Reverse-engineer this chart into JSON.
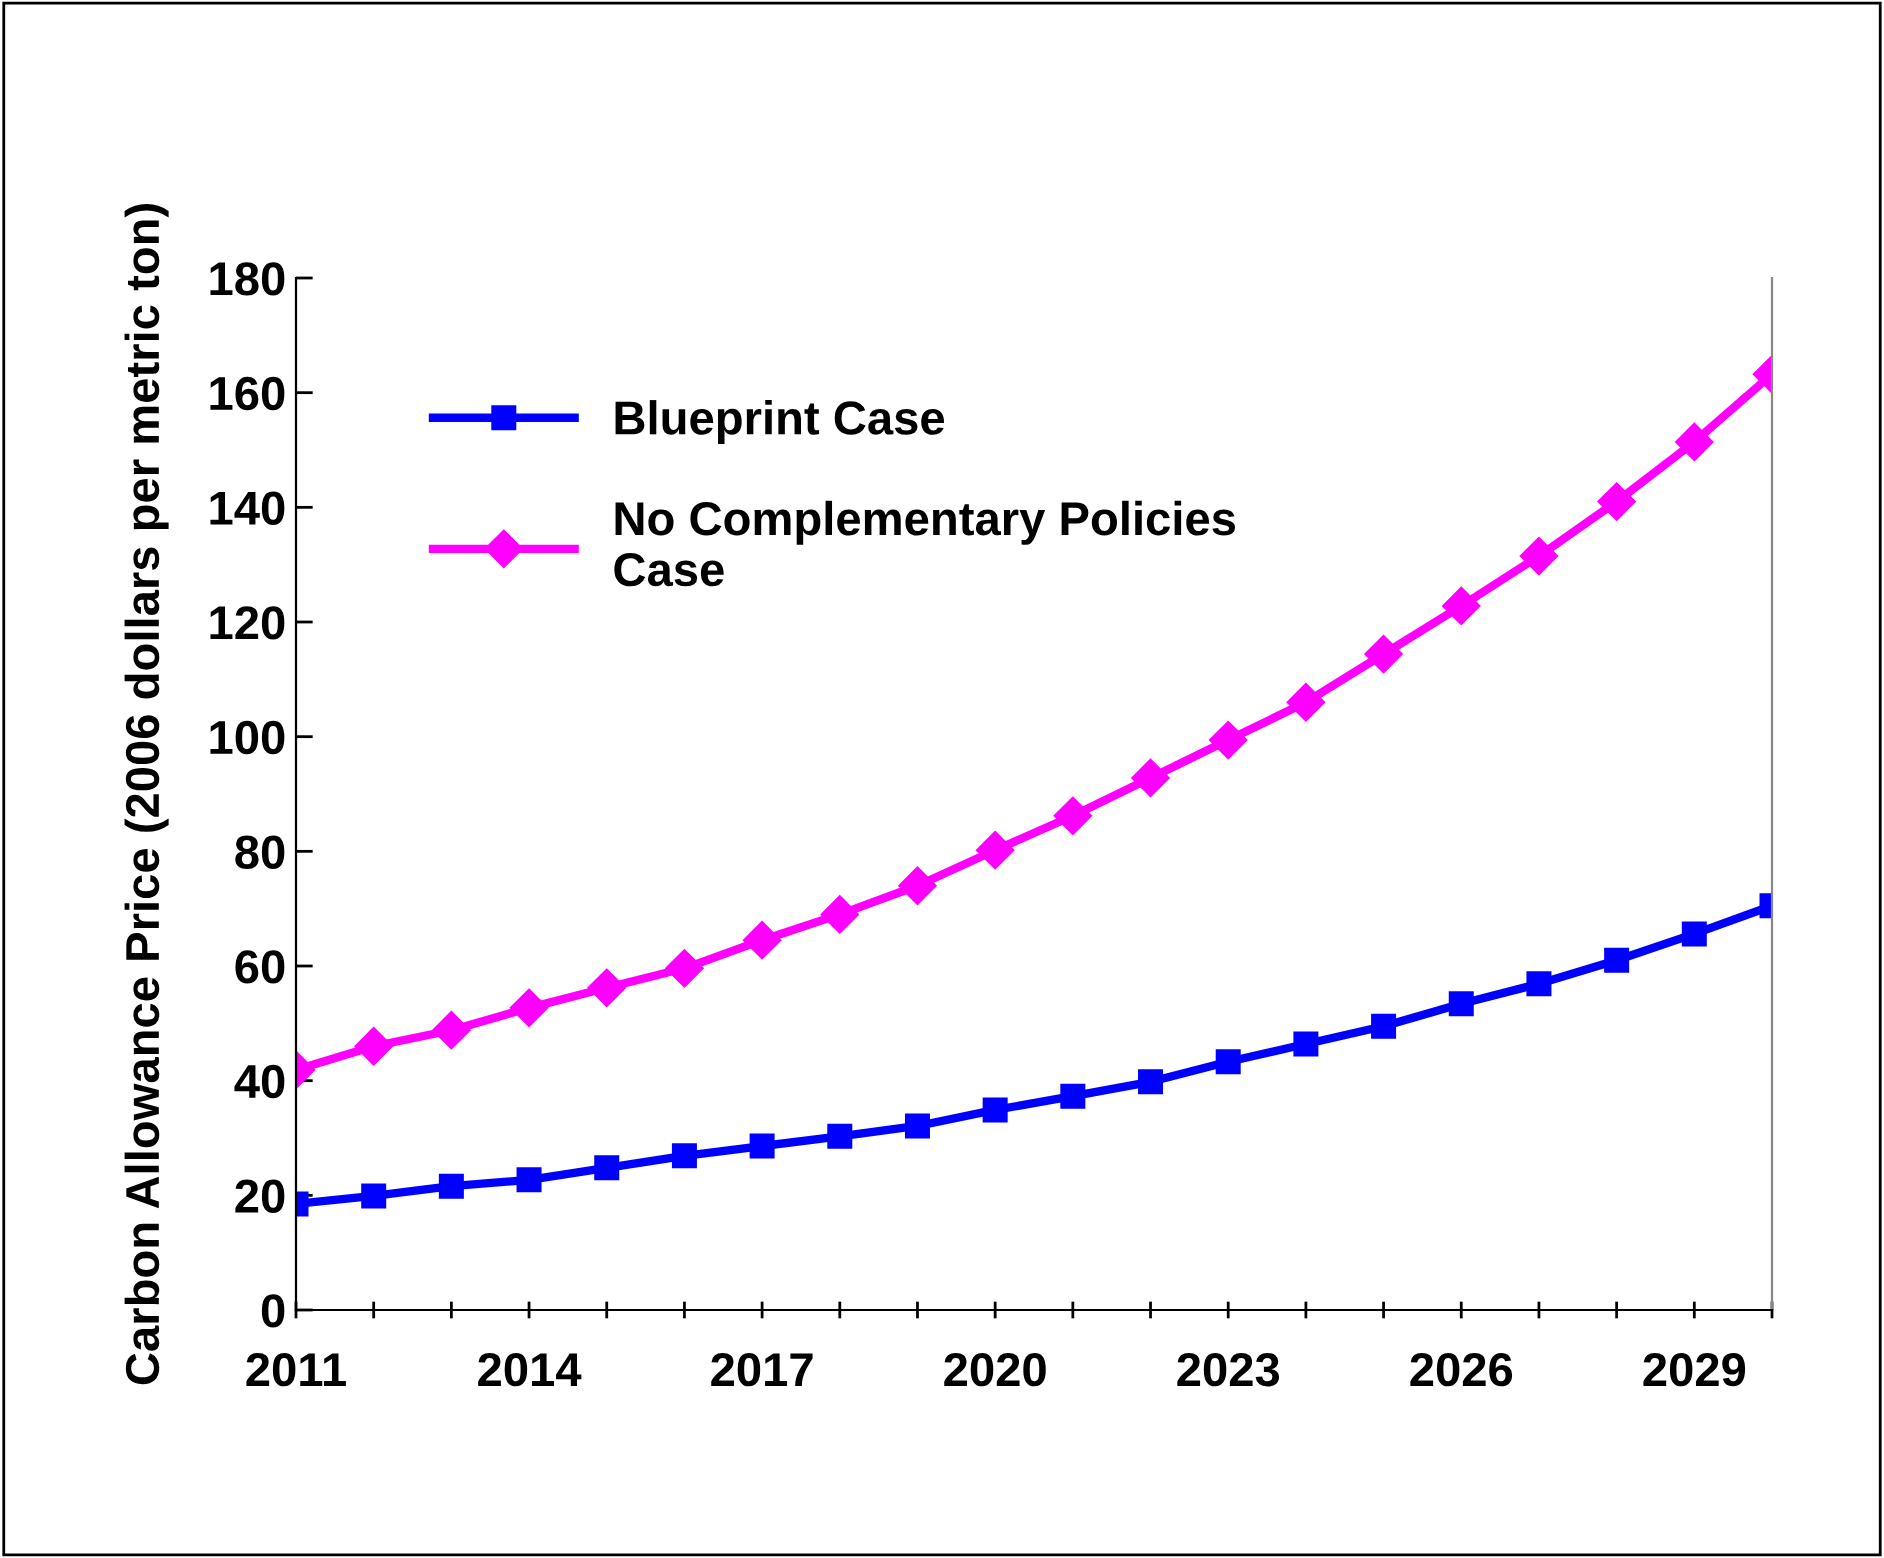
{
  "chart_data": {
    "type": "line",
    "ylabel": "Carbon Allowance Price (2006 dollars per metric ton)",
    "x": [
      2011,
      2012,
      2013,
      2014,
      2015,
      2016,
      2017,
      2018,
      2019,
      2020,
      2021,
      2022,
      2023,
      2024,
      2025,
      2026,
      2027,
      2028,
      2029,
      2030
    ],
    "series": [
      {
        "name": "Blueprint Case",
        "color": "#0000ff",
        "marker": "square",
        "values": [
          18.5,
          19.9,
          21.6,
          22.7,
          24.8,
          26.9,
          28.6,
          30.3,
          32.1,
          34.9,
          37.3,
          39.8,
          43.3,
          46.4,
          49.5,
          53.4,
          56.9,
          61.0,
          65.6,
          70.5
        ]
      },
      {
        "name": "No Complementary Policies\nCase",
        "color": "#ff00ff",
        "marker": "diamond",
        "values": [
          41.9,
          46.0,
          48.8,
          52.7,
          56.2,
          59.6,
          64.5,
          69.0,
          74.0,
          80.2,
          86.2,
          92.8,
          99.4,
          106.0,
          114.4,
          122.8,
          131.5,
          141.0,
          151.4,
          163.2
        ]
      }
    ],
    "xlim": [
      2011,
      2030
    ],
    "xticks": [
      2011,
      {
        "value": 2012,
        "label": null
      },
      {
        "value": 2013,
        "label": null
      },
      2014,
      {
        "value": 2015,
        "label": null
      },
      {
        "value": 2016,
        "label": null
      },
      2017,
      {
        "value": 2018,
        "label": null
      },
      {
        "value": 2019,
        "label": null
      },
      2020,
      {
        "value": 2021,
        "label": null
      },
      {
        "value": 2022,
        "label": null
      },
      2023,
      {
        "value": 2024,
        "label": null
      },
      {
        "value": 2025,
        "label": null
      },
      2026,
      {
        "value": 2027,
        "label": null
      },
      {
        "value": 2028,
        "label": null
      },
      2029,
      {
        "value": 2030,
        "label": null
      }
    ],
    "ylim": [
      0,
      180
    ],
    "yticks": [
      0,
      20,
      40,
      60,
      80,
      100,
      120,
      140,
      160,
      180
    ],
    "grid": false,
    "legend": "top left",
    "line_style": "solid"
  }
}
